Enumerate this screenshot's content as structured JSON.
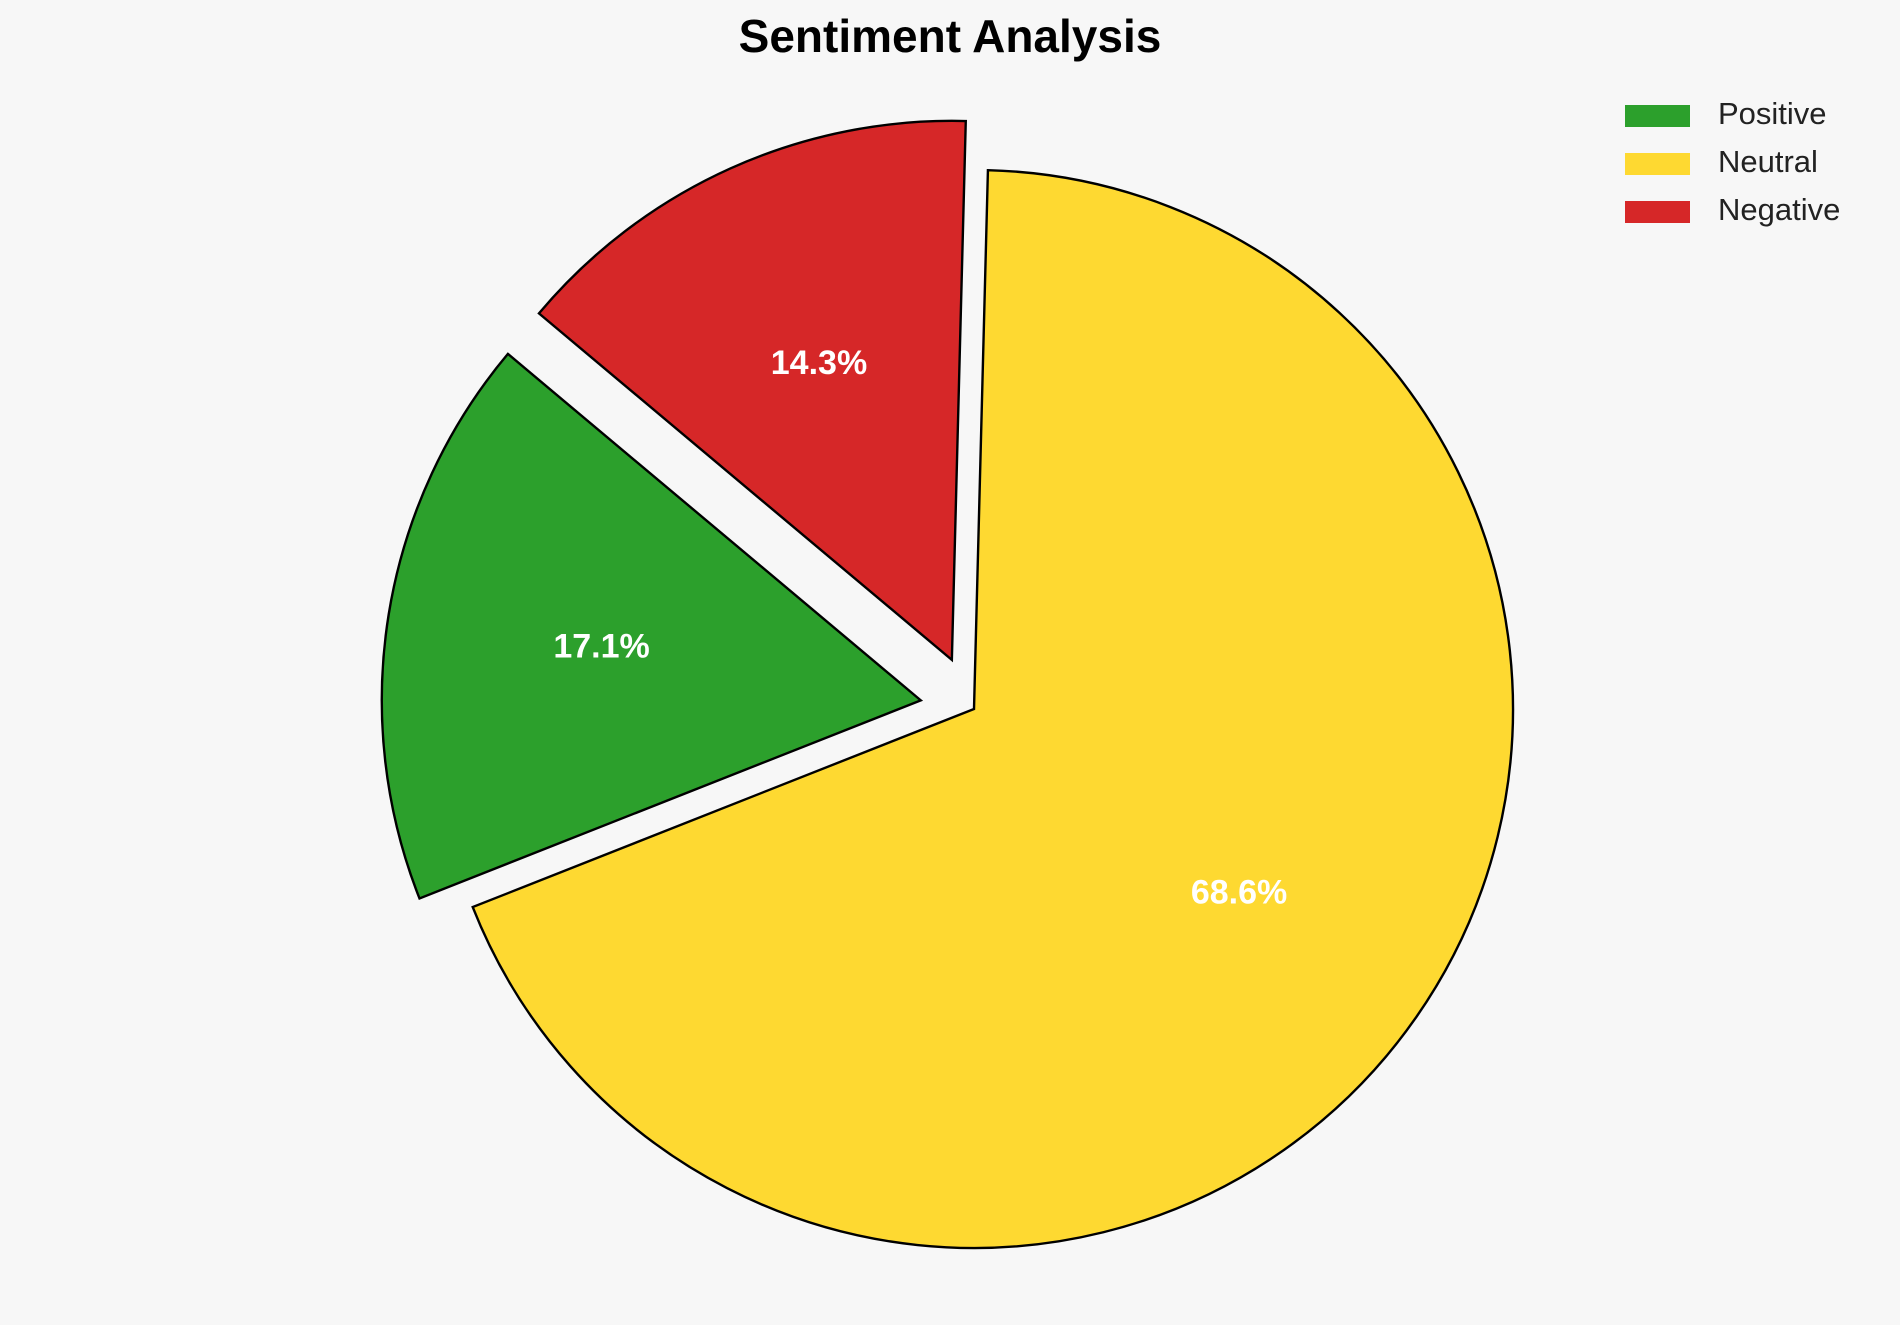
{
  "chart_data": {
    "type": "pie",
    "title": "Sentiment Analysis",
    "categories": [
      "Positive",
      "Neutral",
      "Negative"
    ],
    "values": [
      17.1,
      68.6,
      14.3
    ],
    "value_labels": [
      "17.1%",
      "68.6%",
      "14.3%"
    ],
    "colors": [
      "#2ca02c",
      "#fed931",
      "#d62728"
    ],
    "explode": [
      0.1,
      0,
      0.1
    ],
    "startangle": 140,
    "legend": "upper right"
  }
}
